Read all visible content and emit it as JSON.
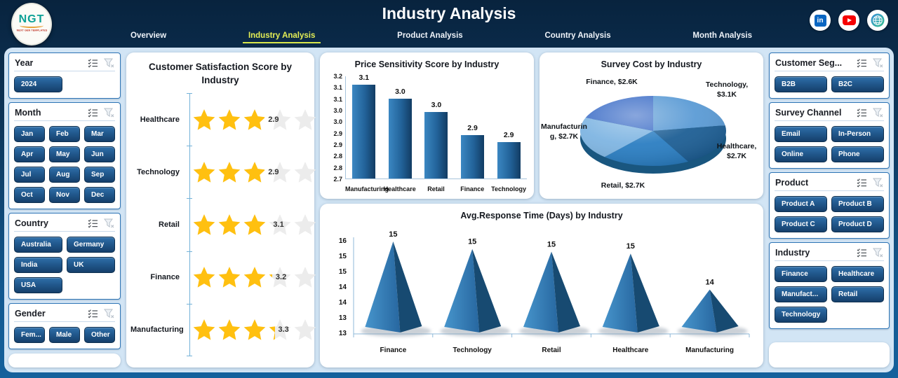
{
  "header": {
    "logo": {
      "text": "NGT",
      "tagline": "NEXT GEN TEMPLATES"
    },
    "title": "Industry Analysis",
    "nav": [
      {
        "label": "Overview",
        "active": false
      },
      {
        "label": "Industry Analysis",
        "active": true
      },
      {
        "label": "Product Analysis",
        "active": false
      },
      {
        "label": "Country Analysis",
        "active": false
      },
      {
        "label": "Month Analysis",
        "active": false
      }
    ],
    "social_icons": [
      "linkedin-icon",
      "youtube-icon",
      "globe-icon"
    ]
  },
  "filters": {
    "left": [
      {
        "title": "Year",
        "cols": 2,
        "items": [
          "2024"
        ]
      },
      {
        "title": "Month",
        "cols": 3,
        "items": [
          "Jan",
          "Feb",
          "Mar",
          "Apr",
          "May",
          "Jun",
          "Jul",
          "Aug",
          "Sep",
          "Oct",
          "Nov",
          "Dec"
        ]
      },
      {
        "title": "Country",
        "cols": 2,
        "items": [
          "Australia",
          "Germany",
          "India",
          "UK",
          "USA"
        ]
      },
      {
        "title": "Gender",
        "cols": 3,
        "items": [
          "Fem...",
          "Male",
          "Other"
        ]
      }
    ],
    "right": [
      {
        "title": "Customer Seg...",
        "cols": 2,
        "items": [
          "B2B",
          "B2C"
        ]
      },
      {
        "title": "Survey Channel",
        "cols": 2,
        "items": [
          "Email",
          "In-Person",
          "Online",
          "Phone"
        ]
      },
      {
        "title": "Product",
        "cols": 2,
        "items": [
          "Product A",
          "Product B",
          "Product C",
          "Product D"
        ]
      },
      {
        "title": "Industry",
        "cols": 2,
        "items": [
          "Finance",
          "Healthcare",
          "Manufact...",
          "Retail",
          "Technology"
        ]
      }
    ]
  },
  "chart_data": [
    {
      "type": "rating",
      "title": "Customer Satisfaction Score by Industry",
      "categories": [
        "Healthcare",
        "Technology",
        "Retail",
        "Finance",
        "Manufacturing"
      ],
      "values": [
        2.9,
        2.9,
        3.1,
        3.2,
        3.3
      ],
      "max_stars": 5,
      "star_color": "#FFC010",
      "empty_star_color": "#ECECEC"
    },
    {
      "type": "bar",
      "title": "Price Sensitivity Score by Industry",
      "categories": [
        "Manufacturing",
        "Healthcare",
        "Retail",
        "Finance",
        "Technology"
      ],
      "values": [
        3.1,
        3.0,
        3.0,
        2.9,
        2.9
      ],
      "precise_values": [
        3.11,
        3.05,
        2.99,
        2.89,
        2.86
      ],
      "ylim": [
        2.7,
        3.15
      ],
      "yticks": [
        "3.2",
        "3.1",
        "3.1",
        "3.0",
        "3.0",
        "2.9",
        "2.9",
        "2.8",
        "2.8",
        "2.7"
      ],
      "grid": false,
      "bar_color_light": "#3B87C2",
      "bar_color_dark": "#123C63"
    },
    {
      "type": "pie",
      "title": "Survey Cost by Industry",
      "start_angle": "top",
      "direction": "clockwise",
      "slices": [
        {
          "label": "Technology",
          "value": 3.1,
          "display": "Technology, $3.1K",
          "color": "#5B9BD5"
        },
        {
          "label": "Healthcare",
          "value": 2.7,
          "display": "Healthcare, $2.7K",
          "color": "#1E5F95"
        },
        {
          "label": "Retail",
          "value": 2.7,
          "display": "Retail, $2.7K",
          "color": "#2B7EC2"
        },
        {
          "label": "Manufacturing",
          "value": 2.7,
          "display": "Manufacturing, $2.7K",
          "color": "#7FB5E2"
        },
        {
          "label": "Finance",
          "value": 2.6,
          "display": "Finance, $2.6K",
          "color": "#4070C8"
        }
      ]
    },
    {
      "type": "pyramid",
      "title": "Avg.Response Time (Days) by Industry",
      "categories": [
        "Finance",
        "Technology",
        "Retail",
        "Healthcare",
        "Manufacturing"
      ],
      "values": [
        15,
        15,
        15,
        15,
        14
      ],
      "peak_fractions": [
        1.0,
        0.92,
        0.89,
        0.87,
        0.48
      ],
      "ylim": [
        13,
        16
      ],
      "yticks": [
        "16",
        "15",
        "15",
        "14",
        "14",
        "13",
        "13"
      ],
      "pyramid_color_light": "#4795CC",
      "pyramid_color_dark": "#174A71"
    }
  ]
}
